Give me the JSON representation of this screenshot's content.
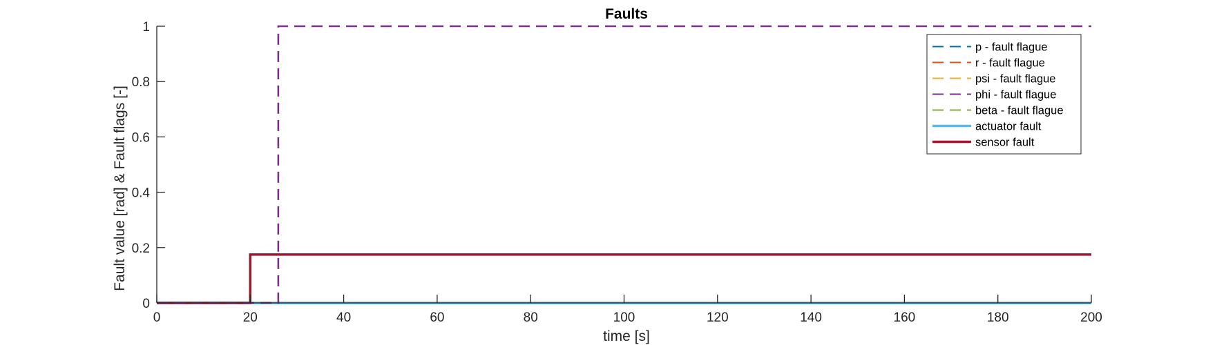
{
  "chart_data": {
    "type": "line",
    "title": "Faults",
    "xlabel": "time [s]",
    "ylabel": "Fault value [rad] & Fault flags [-]",
    "xlim": [
      0,
      200
    ],
    "ylim": [
      0,
      1
    ],
    "xticks": [
      "0",
      "20",
      "40",
      "60",
      "80",
      "100",
      "120",
      "140",
      "160",
      "180",
      "200"
    ],
    "yticks": [
      "0",
      "0.2",
      "0.4",
      "0.6",
      "0.8",
      "1"
    ],
    "grid": false,
    "legend_position": "top-right",
    "series": [
      {
        "name": "p - fault flague",
        "color": "#0072BD",
        "style": "dashed",
        "x": [
          0,
          200
        ],
        "y": [
          0,
          0
        ]
      },
      {
        "name": "r - fault flague",
        "color": "#D95319",
        "style": "dashed",
        "x": [
          0,
          200
        ],
        "y": [
          0,
          0
        ]
      },
      {
        "name": "psi - fault flague",
        "color": "#EDB120",
        "style": "dashed",
        "x": [
          0,
          200
        ],
        "y": [
          0,
          0
        ]
      },
      {
        "name": "phi - fault flague",
        "color": "#7E2F8E",
        "style": "dashed",
        "x": [
          0,
          26,
          26,
          200
        ],
        "y": [
          0,
          0,
          1,
          1
        ]
      },
      {
        "name": "beta - fault flague",
        "color": "#77AC30",
        "style": "dashed",
        "x": [
          0,
          200
        ],
        "y": [
          0,
          0
        ]
      },
      {
        "name": "actuator fault",
        "color": "#4DBEEE",
        "style": "solid",
        "x": [
          0,
          200
        ],
        "y": [
          0,
          0
        ]
      },
      {
        "name": "sensor fault",
        "color": "#A2142F",
        "style": "solid",
        "x": [
          0,
          20,
          20,
          200
        ],
        "y": [
          0,
          0,
          0.175,
          0.175
        ]
      }
    ]
  }
}
